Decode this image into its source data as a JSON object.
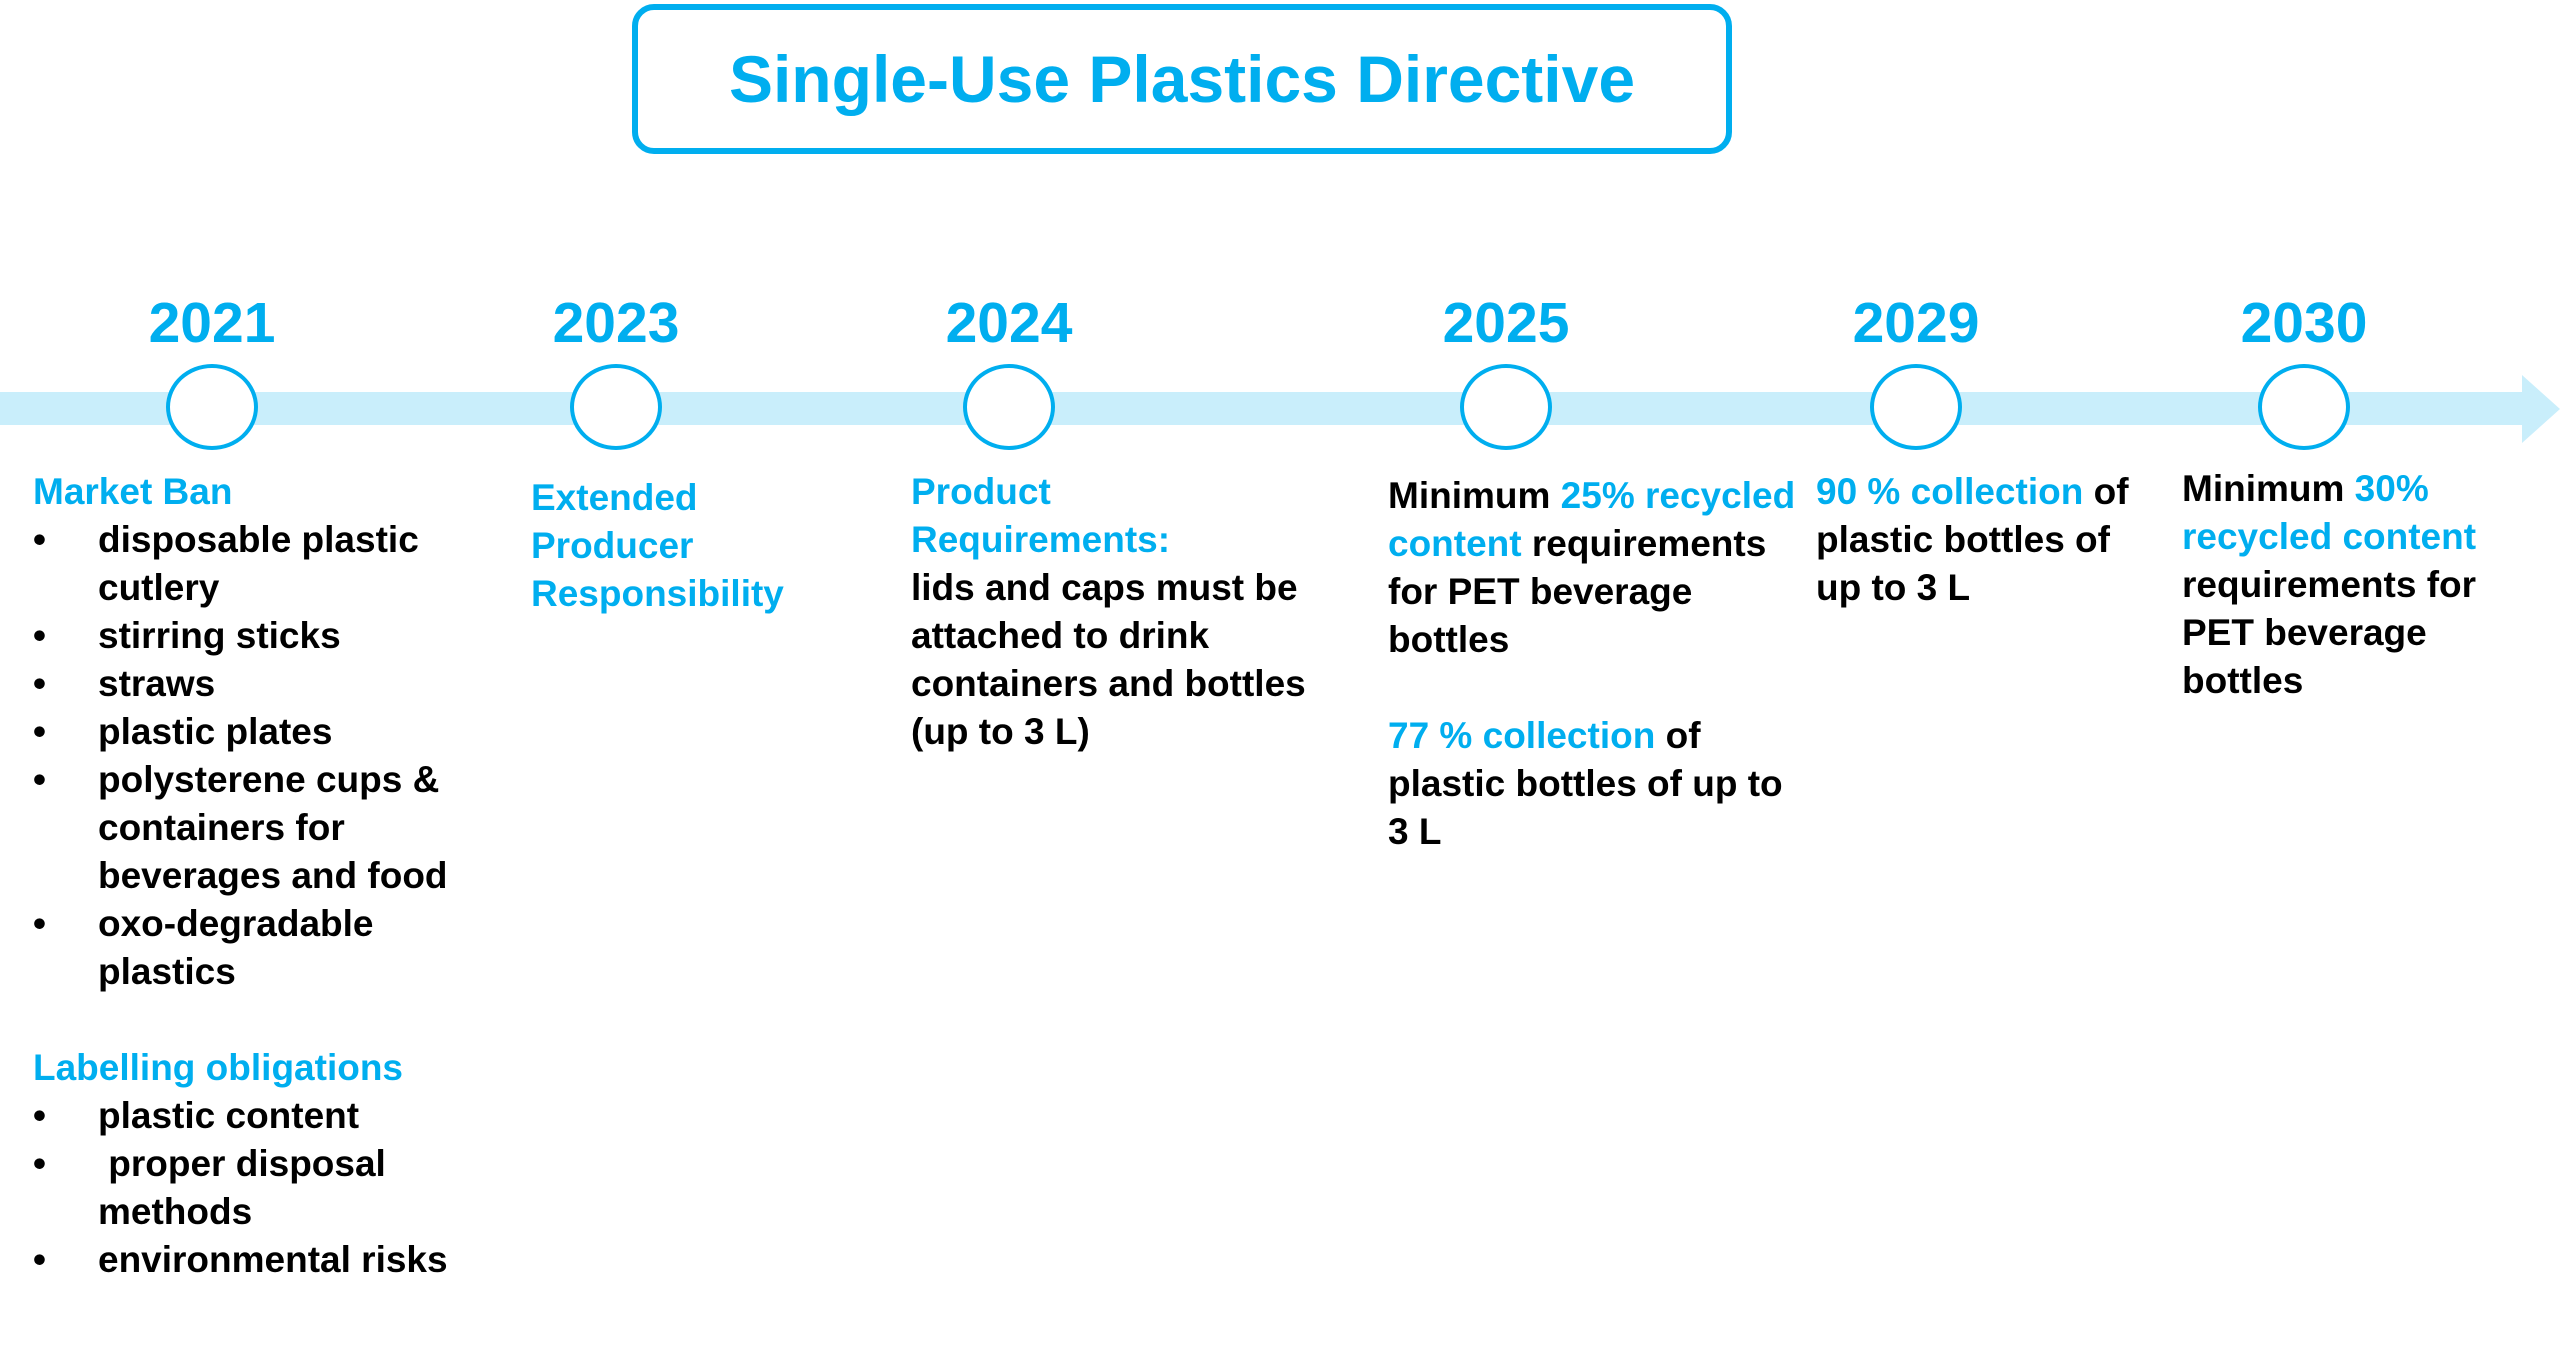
{
  "title": "Single-Use Plastics Directive",
  "colors": {
    "accent": "#00AEEF",
    "band": "#C9EEFB"
  },
  "milestones": [
    {
      "year": "2021",
      "market_ban_heading": "Market Ban",
      "market_ban_items": [
        "disposable plastic cutlery",
        "stirring sticks",
        "straws",
        "plastic plates",
        "polysterene cups & containers for beverages and food",
        "oxo-degradable plastics"
      ],
      "labelling_heading": "Labelling obligations",
      "labelling_items": [
        "plastic content",
        " proper disposal methods",
        "environmental risks"
      ]
    },
    {
      "year": "2023",
      "heading": "Extended Producer Responsibility"
    },
    {
      "year": "2024",
      "heading": "Product Requirements:",
      "text": "lids and caps must be attached to drink containers and bottles (up to 3 L)"
    },
    {
      "year": "2025",
      "pre": "Minimum ",
      "highlight": "25% recycled content",
      "text": " requirements for PET beverage bottles",
      "highlight2": "77 % collection",
      "text2": " of plastic bottles of up to 3 L"
    },
    {
      "year": "2029",
      "highlight": "90 % collection",
      "text": " of plastic bottles of up to 3 L"
    },
    {
      "year": "2030",
      "pre": "Minimum ",
      "highlight": "30% recycled content",
      "text": " requirements for PET beverage bottles"
    }
  ]
}
